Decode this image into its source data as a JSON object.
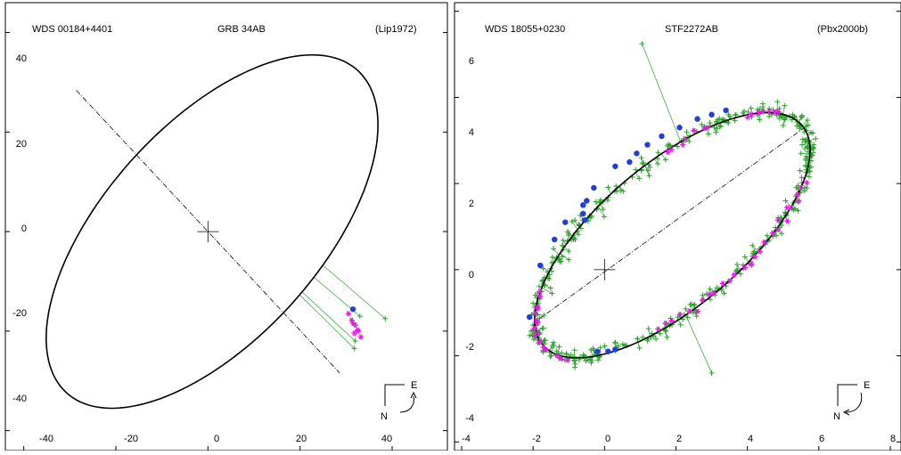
{
  "chart_data": [
    {
      "type": "scatter",
      "header": {
        "left": "WDS 00184+4401",
        "center": "GRB  34AB",
        "right": "(Lip1972)"
      },
      "xlim": [
        -44,
        52
      ],
      "ylim": [
        -44,
        46
      ],
      "xticks": [
        -40,
        -20,
        0,
        20,
        40
      ],
      "yticks": [
        40,
        20,
        0,
        -20,
        -40
      ],
      "orbit_ellipse": {
        "center": [
          0.9,
          0
        ],
        "semi_major": 45.3,
        "semi_minor": 22.5,
        "rotation_deg": 44.3
      },
      "line_of_apsides": [
        [
          -28.6,
          28.4
        ],
        [
          28.6,
          -28.4
        ]
      ],
      "primary": [
        0,
        0
      ],
      "series": [
        {
          "marker": "asterisk",
          "color": "#e81ae8",
          "points": [
            [
              30.5,
              -16.5
            ],
            [
              31.2,
              -17.8
            ],
            [
              32.0,
              -18.8
            ],
            [
              32.5,
              -19.8
            ],
            [
              31.8,
              -20.4
            ],
            [
              33.2,
              -21.2
            ],
            [
              32.6,
              -20.0
            ],
            [
              31.5,
              -18.4
            ]
          ]
        },
        {
          "marker": "circle",
          "color": "#1f3fd6",
          "points": [
            [
              31.5,
              -15.6
            ]
          ]
        },
        {
          "marker": "plus",
          "color": "#2aa12a",
          "points": [
            [
              38.5,
              -17.5
            ],
            [
              31.8,
              -23.5
            ],
            [
              32.0,
              -22.0
            ],
            [
              33.0,
              -17.0
            ]
          ]
        }
      ],
      "orientation": {
        "north": "N",
        "east": "E"
      }
    },
    {
      "type": "scatter",
      "header": {
        "left": "WDS 18055+0230",
        "center": "STF2272AB",
        "right": "(Pbx2000b)"
      },
      "xlim": [
        -4.2,
        8.3
      ],
      "ylim": [
        -4.2,
        6.2
      ],
      "xticks": [
        -4,
        -2,
        0,
        2,
        4,
        6,
        8
      ],
      "yticks": [
        6,
        4,
        2,
        0,
        -2,
        -4
      ],
      "orbit_ellipse": {
        "center": [
          1.9,
          0.8
        ],
        "semi_major": 4.45,
        "semi_minor": 1.78,
        "rotation_deg": 33.0
      },
      "line_of_apsides": [
        [
          -1.84,
          -1.15
        ],
        [
          5.6,
          3.3
        ]
      ],
      "primary": [
        0,
        0
      ],
      "series": [
        {
          "marker": "plus",
          "color": "#2aa12a",
          "points": []
        },
        {
          "marker": "asterisk",
          "color": "#e81ae8",
          "points": []
        },
        {
          "marker": "circle",
          "color": "#1f3fd6",
          "points": [
            [
              -2.1,
              -1.1
            ],
            [
              -1.8,
              0.1
            ],
            [
              -1.4,
              0.7
            ],
            [
              -1.1,
              1.1
            ],
            [
              -0.6,
              1.5
            ],
            [
              -0.5,
              1.6
            ],
            [
              -0.6,
              1.3
            ],
            [
              -0.55,
              1.15
            ],
            [
              -0.3,
              1.9
            ],
            [
              0.3,
              2.4
            ],
            [
              0.7,
              2.5
            ],
            [
              0.9,
              2.7
            ],
            [
              1.2,
              2.9
            ],
            [
              1.6,
              3.1
            ],
            [
              2.1,
              3.3
            ],
            [
              2.6,
              3.5
            ],
            [
              3.0,
              3.6
            ],
            [
              3.4,
              3.7
            ],
            [
              -0.2,
              -1.9
            ],
            [
              0.1,
              -1.9
            ],
            [
              0.3,
              -1.85
            ]
          ]
        }
      ],
      "outliers": [
        [
          1.05,
          5.25
        ],
        [
          3.0,
          -2.4
        ]
      ],
      "orientation": {
        "north": "N",
        "east": "E"
      }
    }
  ]
}
